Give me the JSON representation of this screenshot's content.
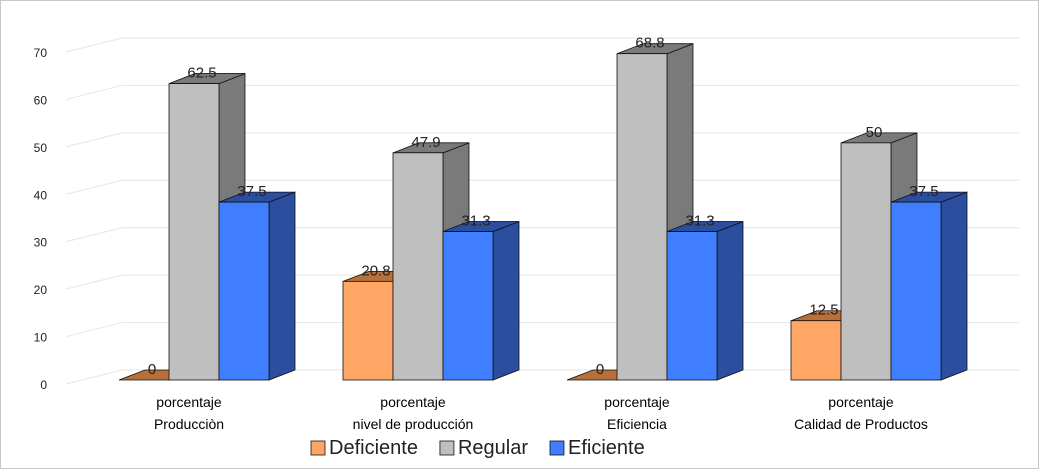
{
  "chart_data": {
    "type": "bar",
    "title": "",
    "xlabel": "",
    "ylabel": "",
    "ylim": [
      0,
      70
    ],
    "yticks": [
      0,
      10,
      20,
      30,
      40,
      50,
      60,
      70
    ],
    "grid": true,
    "legend_position": "bottom",
    "categories": [
      {
        "line1": "porcentaje",
        "line2": "Producciòn"
      },
      {
        "line1": "porcentaje",
        "line2": "nivel de producción"
      },
      {
        "line1": "porcentaje",
        "line2": "Eficiencia"
      },
      {
        "line1": "porcentaje",
        "line2": "Calidad de Productos"
      }
    ],
    "series": [
      {
        "name": "Deficiente",
        "color": "#FFA566",
        "side_color": "#B8703A",
        "values": [
          0,
          20.8,
          0,
          12.5
        ],
        "labels": [
          "0",
          "20.8",
          "0",
          "12.5"
        ]
      },
      {
        "name": "Regular",
        "color": "#BFBFBF",
        "side_color": "#7A7A7A",
        "values": [
          62.5,
          47.9,
          68.8,
          50
        ],
        "labels": [
          "62.5",
          "47.9",
          "68.8",
          "50"
        ]
      },
      {
        "name": "Eficiente",
        "color": "#3F7FFF",
        "side_color": "#2B4E9E",
        "values": [
          37.5,
          31.3,
          31.3,
          37.5
        ],
        "labels": [
          "37.5",
          "31.3",
          "31.3",
          "37.5"
        ]
      }
    ]
  }
}
